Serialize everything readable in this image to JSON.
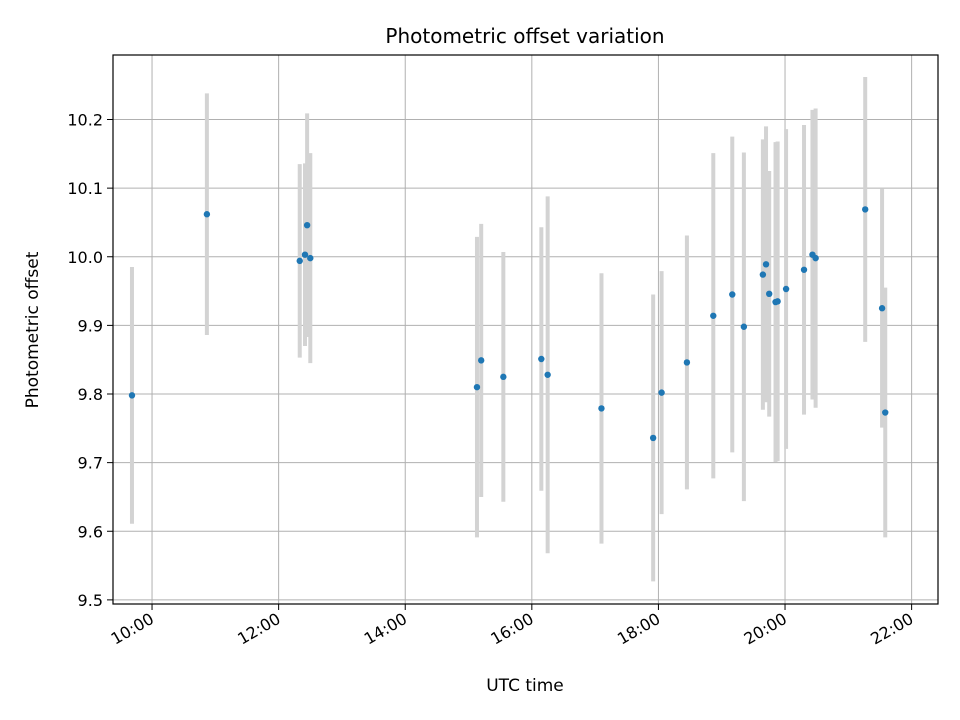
{
  "chart_data": {
    "type": "scatter",
    "title": "Photometric offset variation",
    "xlabel": "UTC time",
    "ylabel": "Photometric offset",
    "x_ticks": [
      "10:00",
      "12:00",
      "14:00",
      "16:00",
      "18:00",
      "20:00",
      "22:00"
    ],
    "y_ticks": [
      "9.5",
      "9.6",
      "9.7",
      "9.8",
      "9.9",
      "10.0",
      "10.1",
      "10.2"
    ],
    "xlim": [
      "09:23",
      "22:25"
    ],
    "ylim": [
      9.494,
      10.294
    ],
    "grid": true,
    "point_color": "#1f77b4",
    "errorbar_color": "#d3d3d3",
    "points": [
      {
        "time": "09:41",
        "value": 9.798,
        "err": 0.187
      },
      {
        "time": "10:52",
        "value": 10.062,
        "err": 0.176
      },
      {
        "time": "12:20",
        "value": 9.994,
        "err": 0.141
      },
      {
        "time": "12:25",
        "value": 10.003,
        "err": 0.133
      },
      {
        "time": "12:27",
        "value": 10.046,
        "err": 0.163
      },
      {
        "time": "12:30",
        "value": 9.998,
        "err": 0.153
      },
      {
        "time": "15:08",
        "value": 9.81,
        "err": 0.219
      },
      {
        "time": "15:12",
        "value": 9.849,
        "err": 0.199
      },
      {
        "time": "15:33",
        "value": 9.825,
        "err": 0.182
      },
      {
        "time": "16:09",
        "value": 9.851,
        "err": 0.192
      },
      {
        "time": "16:15",
        "value": 9.828,
        "err": 0.26
      },
      {
        "time": "17:06",
        "value": 9.779,
        "err": 0.197
      },
      {
        "time": "17:55",
        "value": 9.736,
        "err": 0.209
      },
      {
        "time": "18:03",
        "value": 9.802,
        "err": 0.177
      },
      {
        "time": "18:27",
        "value": 9.846,
        "err": 0.185
      },
      {
        "time": "18:52",
        "value": 9.914,
        "err": 0.237
      },
      {
        "time": "19:10",
        "value": 9.945,
        "err": 0.23
      },
      {
        "time": "19:21",
        "value": 9.898,
        "err": 0.254
      },
      {
        "time": "19:39",
        "value": 9.974,
        "err": 0.197
      },
      {
        "time": "19:42",
        "value": 9.989,
        "err": 0.201
      },
      {
        "time": "19:45",
        "value": 9.946,
        "err": 0.179
      },
      {
        "time": "19:51",
        "value": 9.934,
        "err": 0.233
      },
      {
        "time": "19:53",
        "value": 9.935,
        "err": 0.233
      },
      {
        "time": "20:01",
        "value": 9.953,
        "err": 0.233
      },
      {
        "time": "20:18",
        "value": 9.981,
        "err": 0.211
      },
      {
        "time": "20:26",
        "value": 10.003,
        "err": 0.211
      },
      {
        "time": "20:29",
        "value": 9.998,
        "err": 0.218
      },
      {
        "time": "21:16",
        "value": 10.069,
        "err": 0.193
      },
      {
        "time": "21:32",
        "value": 9.925,
        "err": 0.174
      },
      {
        "time": "21:35",
        "value": 9.773,
        "err": 0.182
      }
    ]
  }
}
